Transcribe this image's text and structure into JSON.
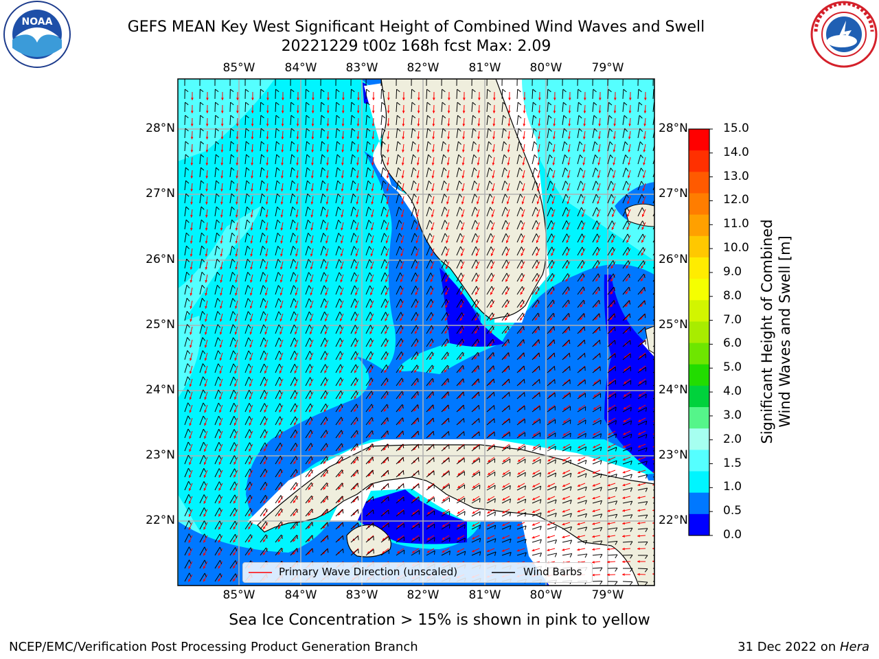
{
  "header": {
    "title_line1": "GEFS MEAN Key West Significant Height of Combined Wind Waves and Swell",
    "title_line2": "20221229 t00z 168h fcst   Max: 2.09"
  },
  "logos": {
    "left": {
      "name": "noaa-logo",
      "text": "NOAA",
      "ring_text": "NATIONAL OCEANIC AND ATMOSPHERIC ADMINISTRATION · U.S. DEPARTMENT OF COMMERCE"
    },
    "right": {
      "name": "nws-logo",
      "ring_text": "NATIONAL WEATHER SERVICE"
    }
  },
  "map": {
    "lon_labels": [
      "85°W",
      "84°W",
      "83°W",
      "82°W",
      "81°W",
      "80°W",
      "79°W"
    ],
    "lat_labels_left": [
      "28°N",
      "27°N",
      "26°N",
      "25°N",
      "24°N",
      "23°N",
      "22°N"
    ],
    "lat_labels_right": [
      "28°N",
      "27°N",
      "26°N",
      "25°N",
      "24°N",
      "23°N",
      "22°N"
    ],
    "legend": {
      "wave_label": "Primary Wave Direction (unscaled)",
      "wind_label": "Wind Barbs",
      "wave_color": "#ff0000",
      "wind_color": "#000000"
    }
  },
  "colorbar": {
    "label_line1": "Significant Height of Combined",
    "label_line2": "Wind Waves and Swell [m]",
    "ticks": [
      "15.0",
      "14.0",
      "13.0",
      "12.0",
      "11.0",
      "10.0",
      "9.0",
      "8.0",
      "7.0",
      "6.0",
      "5.0",
      "4.0",
      "3.0",
      "2.0",
      "1.5",
      "1.0",
      "0.5",
      "0.0"
    ],
    "colors_top_to_bottom": [
      "#ff0000",
      "#ff3000",
      "#ff5a00",
      "#ff7d00",
      "#ffa000",
      "#ffc800",
      "#ffec00",
      "#f5ff00",
      "#d2f500",
      "#a8ec00",
      "#6ee600",
      "#22dc00",
      "#00d23c",
      "#55f58a",
      "#a6fff0",
      "#55ffff",
      "#00f5ff",
      "#0078ff",
      "#0000ff"
    ]
  },
  "footer": {
    "note": "Sea Ice Concentration > 15% is shown in pink to yellow",
    "left": "NCEP/EMC/Verification Post Processing Product Generation Branch",
    "right_prefix": "31 Dec 2022 on ",
    "right_host": "Hera"
  }
}
